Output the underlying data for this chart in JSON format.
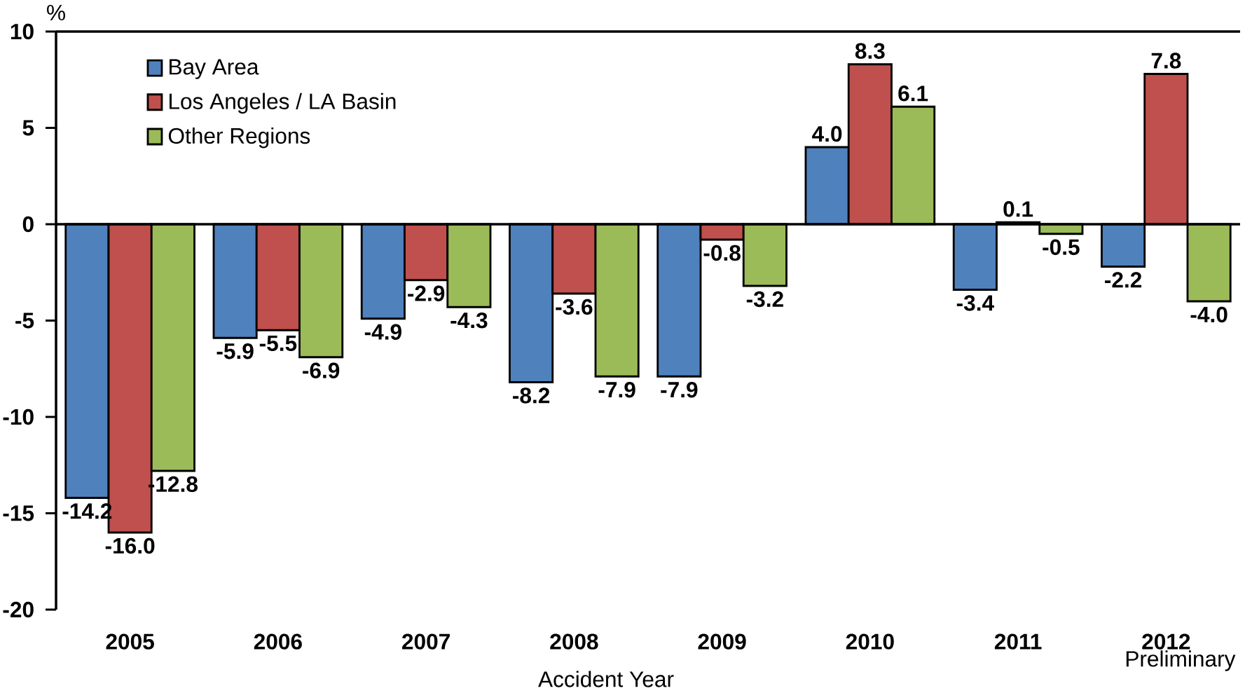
{
  "chart_data": {
    "type": "bar",
    "ylabel": "%",
    "xlabel": "Accident Year",
    "categories": [
      "2005",
      "2006",
      "2007",
      "2008",
      "2009",
      "2010",
      "2011",
      "2012"
    ],
    "series": [
      {
        "name": "Bay Area",
        "color": "#4f81bd",
        "values": [
          -14.2,
          -5.9,
          -4.9,
          -8.2,
          -7.9,
          4.0,
          -3.4,
          -2.2
        ],
        "value_labels": [
          "-14.2",
          "-5.9",
          "-4.9",
          "-8.2",
          "-7.9",
          "4.0",
          "-3.4",
          "-2.2"
        ]
      },
      {
        "name": "Los Angeles / LA Basin",
        "color": "#c0504d",
        "values": [
          -16.0,
          -5.5,
          -2.9,
          -3.6,
          -0.8,
          8.3,
          0.1,
          7.8
        ],
        "value_labels": [
          "-16.0",
          "-5.5",
          "-2.9",
          "-3.6",
          "-0.8",
          "8.3",
          "0.1",
          "7.8"
        ]
      },
      {
        "name": "Other Regions",
        "color": "#9bbb59",
        "values": [
          -12.8,
          -6.9,
          -4.3,
          -7.9,
          -3.2,
          6.1,
          -0.5,
          -4.0
        ],
        "value_labels": [
          "-12.8",
          "-6.9",
          "-4.3",
          "-7.9",
          "-3.2",
          "6.1",
          "-0.5",
          "-4.0"
        ]
      }
    ],
    "ylim": [
      -20,
      10
    ],
    "yticks": [
      -20,
      -15,
      -10,
      -5,
      0,
      5,
      10
    ],
    "annotations": [
      "Preliminary"
    ],
    "legend": "top left"
  }
}
